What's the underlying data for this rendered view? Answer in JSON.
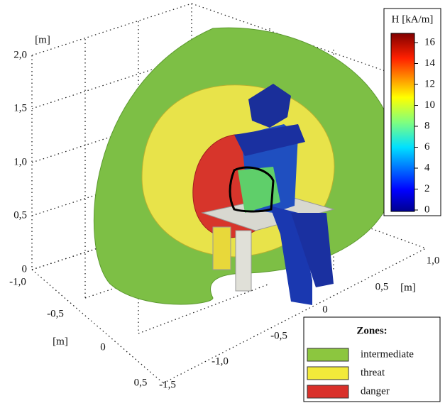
{
  "z_axis": {
    "unit": "[m]",
    "ticks": [
      "2,0",
      "1,5",
      "1,0",
      "0,5",
      "0"
    ]
  },
  "x_axis": {
    "unit": "[m]",
    "ticks": [
      "-1,0",
      "-0,5",
      "0",
      "0,5"
    ]
  },
  "y_axis": {
    "unit": "[m]",
    "ticks": [
      "1,0",
      "0,5",
      "0",
      "-0,5",
      "-1,0",
      "-1,5"
    ]
  },
  "colorbar": {
    "title": "H [kA/m]",
    "ticks": [
      0,
      2,
      4,
      6,
      8,
      10,
      12,
      14,
      16
    ]
  },
  "legend": {
    "title": "Zones:",
    "items": [
      {
        "label": "intermediate",
        "color": "#8cc63f"
      },
      {
        "label": "threat",
        "color": "#f2ea3a"
      },
      {
        "label": "danger",
        "color": "#d9302a"
      }
    ]
  }
}
